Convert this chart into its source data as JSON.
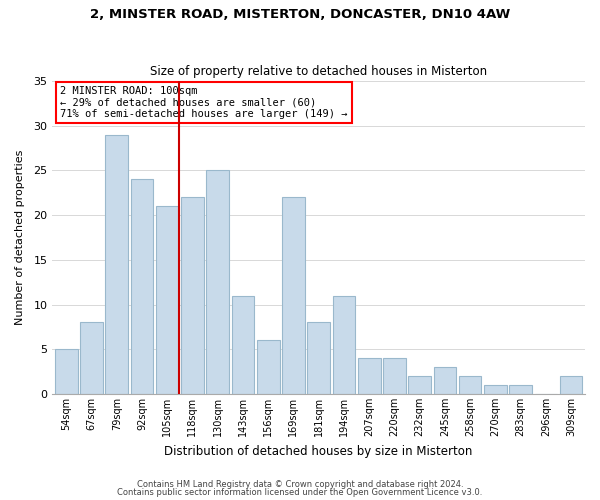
{
  "title": "2, MINSTER ROAD, MISTERTON, DONCASTER, DN10 4AW",
  "subtitle": "Size of property relative to detached houses in Misterton",
  "xlabel": "Distribution of detached houses by size in Misterton",
  "ylabel": "Number of detached properties",
  "bar_color": "#c8daea",
  "bar_edge_color": "#9ab8cc",
  "reference_line_color": "#cc0000",
  "categories": [
    "54sqm",
    "67sqm",
    "79sqm",
    "92sqm",
    "105sqm",
    "118sqm",
    "130sqm",
    "143sqm",
    "156sqm",
    "169sqm",
    "181sqm",
    "194sqm",
    "207sqm",
    "220sqm",
    "232sqm",
    "245sqm",
    "258sqm",
    "270sqm",
    "283sqm",
    "296sqm",
    "309sqm"
  ],
  "values": [
    5,
    8,
    29,
    24,
    21,
    22,
    25,
    11,
    6,
    22,
    8,
    11,
    4,
    4,
    2,
    3,
    2,
    1,
    1,
    0,
    2
  ],
  "ref_bar_index": 4,
  "ylim": [
    0,
    35
  ],
  "yticks": [
    0,
    5,
    10,
    15,
    20,
    25,
    30,
    35
  ],
  "annotation_title": "2 MINSTER ROAD: 100sqm",
  "annotation_line1": "← 29% of detached houses are smaller (60)",
  "annotation_line2": "71% of semi-detached houses are larger (149) →",
  "footer1": "Contains HM Land Registry data © Crown copyright and database right 2024.",
  "footer2": "Contains public sector information licensed under the Open Government Licence v3.0.",
  "bg_color": "#ffffff",
  "grid_color": "#d8d8d8"
}
